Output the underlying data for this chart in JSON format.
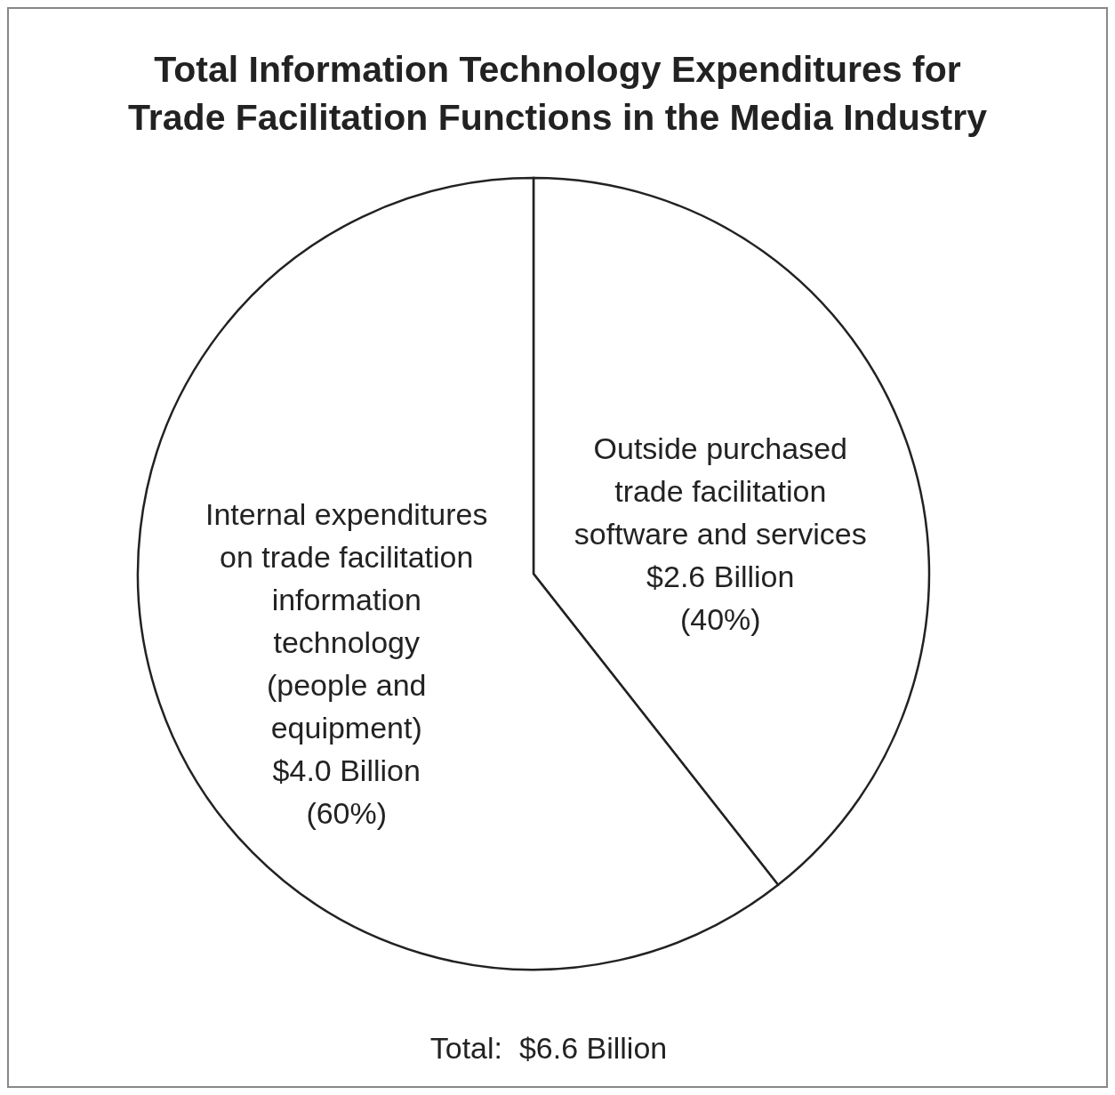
{
  "chart_data": {
    "type": "pie",
    "title": "Total Information Technology Expenditures for\nTrade Facilitation Functions in the Media Industry",
    "categories": [
      "Outside purchased\ntrade facilitation\nsoftware and services",
      "Internal expenditures\non trade facilitation\ninformation\ntechnology\n(people and\nequipment)"
    ],
    "values": [
      2.6,
      4.0
    ],
    "value_labels": [
      "$2.6 Billion\n(40%)",
      "$4.0 Billion\n(60%)"
    ],
    "colors": [
      "#ffffff",
      "#ffffff"
    ],
    "annotations": [
      "Total:  $6.6 Billion"
    ]
  }
}
